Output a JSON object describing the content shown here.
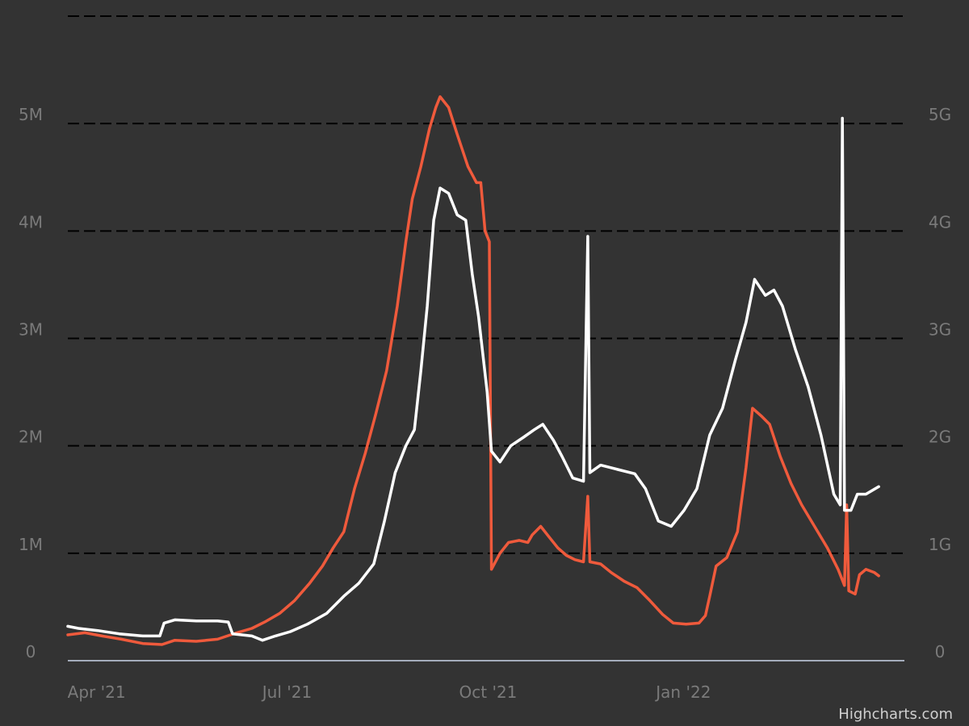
{
  "credit": "Highcharts.com",
  "chart_data": {
    "type": "line",
    "title": "",
    "xlabel": "",
    "ylabel": "",
    "grid": true,
    "gridline_style": "dashed",
    "legend": "none",
    "x_range": [
      "2021-03-31",
      "2022-04-26"
    ],
    "x_ticks": [
      {
        "date": "2021-04-01",
        "label": "Apr '21"
      },
      {
        "date": "2021-07-01",
        "label": "Jul '21"
      },
      {
        "date": "2021-10-01",
        "label": "Oct '21"
      },
      {
        "date": "2022-01-01",
        "label": "Jan '22"
      }
    ],
    "y_left": {
      "range": [
        0,
        6000000
      ],
      "ticks": [
        {
          "value": 0,
          "label": "0"
        },
        {
          "value": 1000000,
          "label": "1M"
        },
        {
          "value": 2000000,
          "label": "2M"
        },
        {
          "value": 3000000,
          "label": "3M"
        },
        {
          "value": 4000000,
          "label": "4M"
        },
        {
          "value": 5000000,
          "label": "5M"
        }
      ]
    },
    "y_right": {
      "range": [
        0,
        6000000000
      ],
      "ticks": [
        {
          "value": 0,
          "label": "0"
        },
        {
          "value": 1000000000,
          "label": "1G"
        },
        {
          "value": 2000000000,
          "label": "2G"
        },
        {
          "value": 3000000000,
          "label": "3G"
        },
        {
          "value": 4000000000,
          "label": "4G"
        },
        {
          "value": 5000000000,
          "label": "5G"
        }
      ]
    },
    "series": [
      {
        "axis": "left",
        "color": "#ef5a3c",
        "points": [
          [
            "2021-03-31",
            240000
          ],
          [
            "2021-04-08",
            260000
          ],
          [
            "2021-04-16",
            230000
          ],
          [
            "2021-04-25",
            200000
          ],
          [
            "2021-05-05",
            160000
          ],
          [
            "2021-05-14",
            150000
          ],
          [
            "2021-05-20",
            190000
          ],
          [
            "2021-05-30",
            180000
          ],
          [
            "2021-06-09",
            200000
          ],
          [
            "2021-06-18",
            260000
          ],
          [
            "2021-06-25",
            300000
          ],
          [
            "2021-07-01",
            360000
          ],
          [
            "2021-07-08",
            440000
          ],
          [
            "2021-07-15",
            560000
          ],
          [
            "2021-07-22",
            720000
          ],
          [
            "2021-07-28",
            880000
          ],
          [
            "2021-08-02",
            1050000
          ],
          [
            "2021-08-07",
            1200000
          ],
          [
            "2021-08-12",
            1600000
          ],
          [
            "2021-08-17",
            1930000
          ],
          [
            "2021-08-22",
            2300000
          ],
          [
            "2021-08-27",
            2700000
          ],
          [
            "2021-09-01",
            3300000
          ],
          [
            "2021-09-05",
            3900000
          ],
          [
            "2021-09-08",
            4300000
          ],
          [
            "2021-09-12",
            4600000
          ],
          [
            "2021-09-16",
            4950000
          ],
          [
            "2021-09-19",
            5150000
          ],
          [
            "2021-09-21",
            5250000
          ],
          [
            "2021-09-25",
            5150000
          ],
          [
            "2021-09-29",
            4900000
          ],
          [
            "2021-10-04",
            4600000
          ],
          [
            "2021-10-08",
            4450000
          ],
          [
            "2021-10-10",
            4450000
          ],
          [
            "2021-10-12",
            4000000
          ],
          [
            "2021-10-14",
            3900000
          ],
          [
            "2021-10-15",
            850000
          ],
          [
            "2021-10-19",
            1000000
          ],
          [
            "2021-10-23",
            1100000
          ],
          [
            "2021-10-28",
            1120000
          ],
          [
            "2021-11-01",
            1100000
          ],
          [
            "2021-11-03",
            1170000
          ],
          [
            "2021-11-07",
            1250000
          ],
          [
            "2021-11-11",
            1150000
          ],
          [
            "2021-11-15",
            1050000
          ],
          [
            "2021-11-19",
            980000
          ],
          [
            "2021-11-23",
            940000
          ],
          [
            "2021-11-27",
            920000
          ],
          [
            "2021-11-29",
            1530000
          ],
          [
            "2021-11-30",
            920000
          ],
          [
            "2021-12-05",
            900000
          ],
          [
            "2021-12-10",
            820000
          ],
          [
            "2021-12-16",
            740000
          ],
          [
            "2021-12-22",
            680000
          ],
          [
            "2021-12-28",
            560000
          ],
          [
            "2022-01-03",
            430000
          ],
          [
            "2022-01-08",
            350000
          ],
          [
            "2022-01-14",
            340000
          ],
          [
            "2022-01-20",
            350000
          ],
          [
            "2022-01-23",
            420000
          ],
          [
            "2022-01-25",
            600000
          ],
          [
            "2022-01-28",
            880000
          ],
          [
            "2022-02-02",
            960000
          ],
          [
            "2022-02-07",
            1200000
          ],
          [
            "2022-02-11",
            1800000
          ],
          [
            "2022-02-14",
            2350000
          ],
          [
            "2022-02-18",
            2280000
          ],
          [
            "2022-02-22",
            2200000
          ],
          [
            "2022-02-27",
            1900000
          ],
          [
            "2022-03-04",
            1650000
          ],
          [
            "2022-03-09",
            1450000
          ],
          [
            "2022-03-15",
            1250000
          ],
          [
            "2022-03-21",
            1050000
          ],
          [
            "2022-03-26",
            850000
          ],
          [
            "2022-03-29",
            700000
          ],
          [
            "2022-03-30",
            1450000
          ],
          [
            "2022-03-31",
            650000
          ],
          [
            "2022-04-03",
            620000
          ],
          [
            "2022-04-05",
            800000
          ],
          [
            "2022-04-08",
            850000
          ],
          [
            "2022-04-12",
            820000
          ],
          [
            "2022-04-14",
            790000
          ]
        ]
      },
      {
        "axis": "right",
        "color": "#ffffff",
        "points": [
          [
            "2021-03-31",
            320000000
          ],
          [
            "2021-04-05",
            300000000
          ],
          [
            "2021-04-14",
            280000000
          ],
          [
            "2021-04-24",
            250000000
          ],
          [
            "2021-05-05",
            230000000
          ],
          [
            "2021-05-13",
            230000000
          ],
          [
            "2021-05-15",
            350000000
          ],
          [
            "2021-05-20",
            380000000
          ],
          [
            "2021-05-30",
            370000000
          ],
          [
            "2021-06-09",
            370000000
          ],
          [
            "2021-06-14",
            360000000
          ],
          [
            "2021-06-16",
            250000000
          ],
          [
            "2021-06-25",
            230000000
          ],
          [
            "2021-06-30",
            190000000
          ],
          [
            "2021-07-06",
            230000000
          ],
          [
            "2021-07-13",
            270000000
          ],
          [
            "2021-07-21",
            340000000
          ],
          [
            "2021-07-30",
            440000000
          ],
          [
            "2021-08-07",
            600000000
          ],
          [
            "2021-08-14",
            720000000
          ],
          [
            "2021-08-21",
            900000000
          ],
          [
            "2021-08-26",
            1300000000
          ],
          [
            "2021-08-31",
            1750000000
          ],
          [
            "2021-09-05",
            2000000000
          ],
          [
            "2021-09-09",
            2150000000
          ],
          [
            "2021-09-12",
            2700000000
          ],
          [
            "2021-09-15",
            3300000000
          ],
          [
            "2021-09-18",
            4100000000
          ],
          [
            "2021-09-21",
            4400000000
          ],
          [
            "2021-09-25",
            4350000000
          ],
          [
            "2021-09-29",
            4150000000
          ],
          [
            "2021-10-03",
            4100000000
          ],
          [
            "2021-10-06",
            3600000000
          ],
          [
            "2021-10-09",
            3200000000
          ],
          [
            "2021-10-13",
            2500000000
          ],
          [
            "2021-10-15",
            1950000000
          ],
          [
            "2021-10-19",
            1850000000
          ],
          [
            "2021-10-24",
            2000000000
          ],
          [
            "2021-10-30",
            2080000000
          ],
          [
            "2021-11-04",
            2150000000
          ],
          [
            "2021-11-08",
            2200000000
          ],
          [
            "2021-11-13",
            2050000000
          ],
          [
            "2021-11-17",
            1900000000
          ],
          [
            "2021-11-22",
            1700000000
          ],
          [
            "2021-11-27",
            1670000000
          ],
          [
            "2021-11-29",
            3950000000
          ],
          [
            "2021-11-30",
            1750000000
          ],
          [
            "2021-12-05",
            1820000000
          ],
          [
            "2021-12-13",
            1780000000
          ],
          [
            "2021-12-21",
            1740000000
          ],
          [
            "2021-12-26",
            1600000000
          ],
          [
            "2022-01-01",
            1300000000
          ],
          [
            "2022-01-07",
            1250000000
          ],
          [
            "2022-01-13",
            1400000000
          ],
          [
            "2022-01-19",
            1600000000
          ],
          [
            "2022-01-25",
            2100000000
          ],
          [
            "2022-01-31",
            2350000000
          ],
          [
            "2022-02-06",
            2800000000
          ],
          [
            "2022-02-11",
            3150000000
          ],
          [
            "2022-02-15",
            3550000000
          ],
          [
            "2022-02-20",
            3400000000
          ],
          [
            "2022-02-24",
            3450000000
          ],
          [
            "2022-02-28",
            3300000000
          ],
          [
            "2022-03-06",
            2900000000
          ],
          [
            "2022-03-12",
            2550000000
          ],
          [
            "2022-03-18",
            2100000000
          ],
          [
            "2022-03-24",
            1550000000
          ],
          [
            "2022-03-27",
            1450000000
          ],
          [
            "2022-03-28",
            5050000000
          ],
          [
            "2022-03-29",
            1400000000
          ],
          [
            "2022-04-01",
            1400000000
          ],
          [
            "2022-04-04",
            1550000000
          ],
          [
            "2022-04-08",
            1550000000
          ],
          [
            "2022-04-14",
            1620000000
          ]
        ]
      }
    ]
  }
}
